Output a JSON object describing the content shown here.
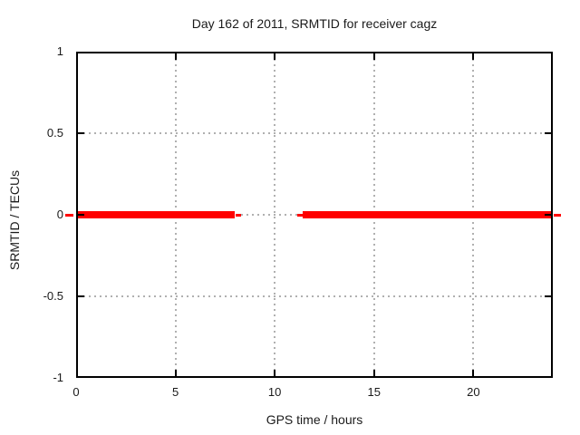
{
  "figure": {
    "background": "#ffffff"
  },
  "chart_data": {
    "type": "line",
    "title": "Day 162 of 2011, SRMTID for receiver cagz",
    "xlabel": "GPS time / hours",
    "ylabel": "SRMTID / TECUs",
    "xlim": [
      0,
      24
    ],
    "ylim": [
      -1,
      1
    ],
    "xticks": {
      "values": [
        0,
        5,
        10,
        15,
        20
      ],
      "labels": [
        "0",
        "5",
        "10",
        "15",
        "20"
      ]
    },
    "yticks": {
      "values": [
        -1,
        -0.5,
        0,
        0.5,
        1
      ],
      "labels": [
        "-1",
        "-0.5",
        "0",
        "0.5",
        "1"
      ]
    },
    "grid": {
      "show": true,
      "style": "dotted",
      "color": "#b0b0b0"
    },
    "legend": "none",
    "colors": {
      "line": "#ff0000",
      "border": "#000000",
      "text": "#1a1a1a"
    },
    "series": [
      {
        "name": "SRMTID",
        "type": "line",
        "color": "#ff0000",
        "y_value": 0,
        "segments_x_hours": [
          [
            0,
            8.0
          ],
          [
            11.4,
            24.0
          ]
        ],
        "thin_dashes_x_hours": [
          [
            -0.55,
            -0.15
          ],
          [
            8.05,
            8.3
          ],
          [
            11.15,
            11.4
          ],
          [
            24.05,
            24.4
          ]
        ],
        "gap_x_hours": [
          8.0,
          11.4
        ]
      }
    ]
  }
}
